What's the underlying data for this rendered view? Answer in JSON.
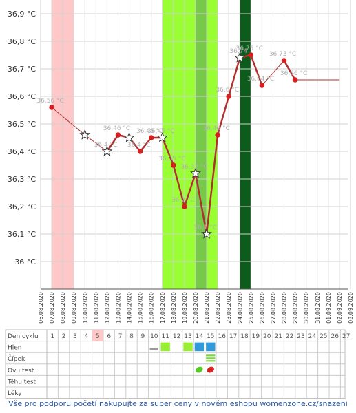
{
  "chart_data": {
    "type": "line",
    "y_unit": "°C",
    "y_ticks": [
      36.0,
      36.1,
      36.2,
      36.3,
      36.4,
      36.5,
      36.6,
      36.7,
      36.8,
      36.9
    ],
    "y_tick_labels": [
      "36 °C",
      "36,1 °C",
      "36,2 °C",
      "36,3 °C",
      "36,4 °C",
      "36,5 °C",
      "36,6 °C",
      "36,7 °C",
      "36,8 °C",
      "36,9 °C"
    ],
    "ylim": [
      35.9,
      36.95
    ],
    "dates": [
      "06.08.2020",
      "07.08.2020",
      "08.08.2020",
      "09.08.2020",
      "10.08.2020",
      "11.08.2020",
      "12.08.2020",
      "13.08.2020",
      "14.08.2020",
      "15.08.2020",
      "16.08.2020",
      "17.08.2020",
      "18.08.2020",
      "19.08.2020",
      "20.08.2020",
      "21.08.2020",
      "22.08.2020",
      "23.08.2020",
      "24.08.2020",
      "25.08.2020",
      "26.08.2020",
      "27.08.2020",
      "28.08.2020",
      "29.08.2020",
      "30.08.2020",
      "31.08.2020",
      "01.09.2020",
      "02.09.2020",
      "03.09.2020"
    ],
    "points": [
      {
        "date": "07.08.2020",
        "value": 36.56,
        "label": "36,56 °C",
        "marker": "dot"
      },
      {
        "date": "10.08.2020",
        "value": 36.46,
        "label": "",
        "marker": "star"
      },
      {
        "date": "12.08.2020",
        "value": 36.4,
        "label": "36,4 °C",
        "marker": "star"
      },
      {
        "date": "13.08.2020",
        "value": 36.46,
        "label": "36,46 °C",
        "marker": "dot"
      },
      {
        "date": "14.08.2020",
        "value": 36.45,
        "label": "",
        "marker": "star"
      },
      {
        "date": "15.08.2020",
        "value": 36.4,
        "label": "36,4 °C",
        "marker": "dot"
      },
      {
        "date": "16.08.2020",
        "value": 36.45,
        "label": "36,45 °C",
        "marker": "dot"
      },
      {
        "date": "17.08.2020",
        "value": 36.45,
        "label": "36,45 °C",
        "marker": "star"
      },
      {
        "date": "18.08.2020",
        "value": 36.35,
        "label": "36,35 °C",
        "marker": "dot"
      },
      {
        "date": "19.08.2020",
        "value": 36.2,
        "label": "36,2 °C",
        "marker": "dot"
      },
      {
        "date": "20.08.2020",
        "value": 36.32,
        "label": "36,32 °C",
        "marker": "star"
      },
      {
        "date": "21.08.2020",
        "value": 36.1,
        "label": "36,1 °C",
        "marker": "star"
      },
      {
        "date": "22.08.2020",
        "value": 36.46,
        "label": "36,46 °C",
        "marker": "dot"
      },
      {
        "date": "23.08.2020",
        "value": 36.6,
        "label": "36,6 °C",
        "marker": "dot"
      },
      {
        "date": "24.08.2020",
        "value": 36.74,
        "label": "36,74",
        "marker": "star"
      },
      {
        "date": "25.08.2020",
        "value": 36.75,
        "label": "36,75 °C",
        "marker": "dot"
      },
      {
        "date": "26.08.2020",
        "value": 36.64,
        "label": "36,64 °C",
        "marker": "dot"
      },
      {
        "date": "28.08.2020",
        "value": 36.73,
        "label": "36,73 °C",
        "marker": "dot"
      },
      {
        "date": "29.08.2020",
        "value": 36.66,
        "label": "36,66 °C",
        "marker": "dot"
      },
      {
        "date": "02.09.2020",
        "value": 36.66,
        "label": "",
        "marker": "none"
      }
    ],
    "bands": [
      {
        "from": "07.08.2020",
        "to": "09.08.2020",
        "color": "#ffc8c8"
      },
      {
        "from": "17.08.2020",
        "to": "22.08.2020",
        "color": "#99ff33"
      },
      {
        "from": "20.08.2020",
        "to": "21.08.2020",
        "color": "#77c94a"
      },
      {
        "from": "24.08.2020",
        "to": "25.08.2020",
        "color": "#0d5c1c"
      }
    ],
    "colors": {
      "line": "#b03030",
      "dot": "#d62020",
      "star_fill": "#ffffff",
      "star_stroke": "#333333",
      "grid": "#d0d0d0"
    }
  },
  "table": {
    "rows": [
      "Den cyklu",
      "Hlen",
      "Čípek",
      "Ovu test",
      "Těhu test",
      "Léky"
    ],
    "days": [
      "1",
      "2",
      "3",
      "4",
      "5",
      "6",
      "7",
      "8",
      "9",
      "10",
      "11",
      "12",
      "13",
      "14",
      "15",
      "16",
      "17",
      "18",
      "19",
      "20",
      "21",
      "22",
      "23",
      "24",
      "25",
      "26",
      "27"
    ],
    "highlight_day": "5",
    "hlen_marks": [
      {
        "day": "10",
        "kind": "grey-bar",
        "color": "#999999"
      },
      {
        "day": "11",
        "kind": "box",
        "color": "#99ee33"
      },
      {
        "day": "13",
        "kind": "box",
        "color": "#99ee33"
      },
      {
        "day": "14",
        "kind": "box",
        "color": "#3399dd"
      },
      {
        "day": "15",
        "kind": "box",
        "color": "#3399dd"
      }
    ],
    "cipek_marks": [
      {
        "day": "15",
        "kind": "stripes",
        "color": "#77dd33"
      }
    ],
    "ovu_marks": [
      {
        "day": "14",
        "kind": "leaf",
        "color": "#55cc22"
      },
      {
        "day": "15",
        "kind": "leaf",
        "color": "#dd2222"
      }
    ]
  },
  "footer_text": "Vše pro podporu početí nakupujte za super ceny v novém eshopu womenzone.cz/snazeni"
}
